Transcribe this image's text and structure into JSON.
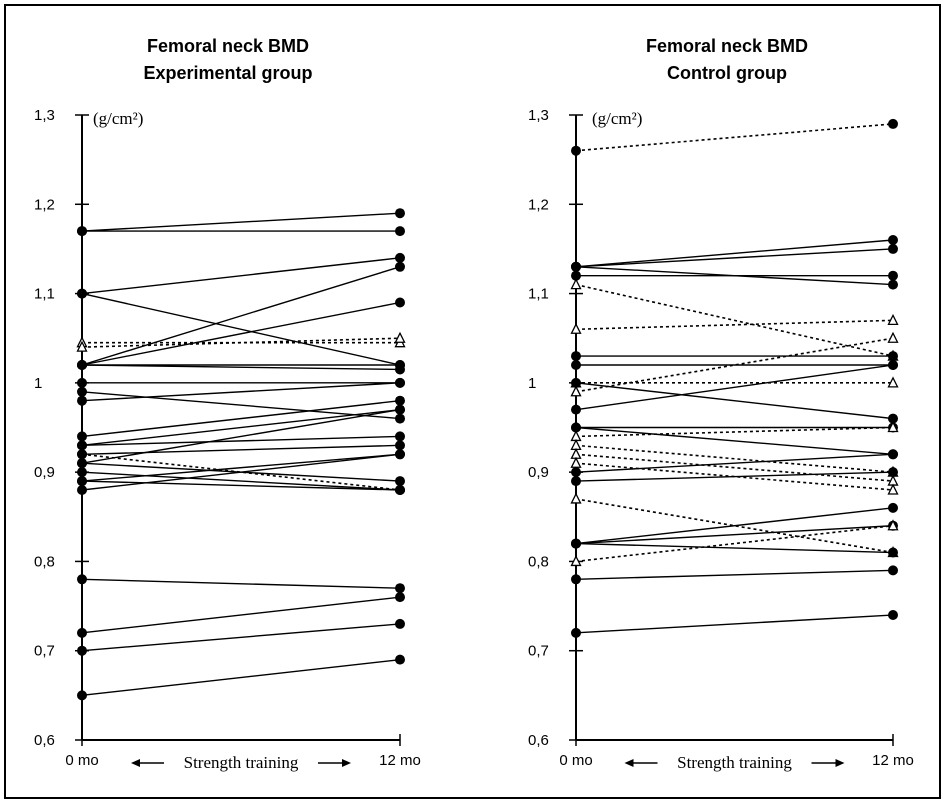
{
  "chart_data": [
    {
      "type": "line",
      "title": "Femoral neck BMD",
      "subtitle": "Experimental group",
      "unit_label": "(g/cm²)",
      "x_categories": [
        "0 mo",
        "12 mo"
      ],
      "xlabel": "Strength training",
      "ylim": [
        0.6,
        1.3
      ],
      "y_ticks": [
        "0,6",
        "0,7",
        "0,8",
        "0,9",
        "1",
        "1,1",
        "1,2",
        "1,3"
      ],
      "grid": false,
      "series": [
        {
          "values": [
            1.17,
            1.19
          ],
          "style": "solid",
          "marker": "circle"
        },
        {
          "values": [
            1.17,
            1.17
          ],
          "style": "solid",
          "marker": "circle"
        },
        {
          "values": [
            1.1,
            1.14
          ],
          "style": "solid",
          "marker": "circle"
        },
        {
          "values": [
            1.1,
            1.02
          ],
          "style": "solid",
          "marker": "circle"
        },
        {
          "values": [
            1.02,
            1.13
          ],
          "style": "solid",
          "marker": "circle"
        },
        {
          "values": [
            1.02,
            1.09
          ],
          "style": "solid",
          "marker": "circle"
        },
        {
          "values": [
            1.045,
            1.045
          ],
          "style": "dotted",
          "marker": "triangle"
        },
        {
          "values": [
            1.04,
            1.05
          ],
          "style": "dotted",
          "marker": "triangle"
        },
        {
          "values": [
            1.02,
            1.02
          ],
          "style": "solid",
          "marker": "circle"
        },
        {
          "values": [
            1.02,
            1.015
          ],
          "style": "solid",
          "marker": "circle"
        },
        {
          "values": [
            1.0,
            1.0
          ],
          "style": "solid",
          "marker": "circle"
        },
        {
          "values": [
            0.98,
            1.0
          ],
          "style": "solid",
          "marker": "circle"
        },
        {
          "values": [
            0.99,
            0.96
          ],
          "style": "solid",
          "marker": "circle"
        },
        {
          "values": [
            0.94,
            0.98
          ],
          "style": "solid",
          "marker": "circle"
        },
        {
          "values": [
            0.93,
            0.97
          ],
          "style": "solid",
          "marker": "circle"
        },
        {
          "values": [
            0.93,
            0.94
          ],
          "style": "solid",
          "marker": "circle"
        },
        {
          "values": [
            0.92,
            0.93
          ],
          "style": "solid",
          "marker": "circle"
        },
        {
          "values": [
            0.91,
            0.97
          ],
          "style": "solid",
          "marker": "circle"
        },
        {
          "values": [
            0.92,
            0.88
          ],
          "style": "dotted",
          "marker": "circle"
        },
        {
          "values": [
            0.91,
            0.89
          ],
          "style": "solid",
          "marker": "circle"
        },
        {
          "values": [
            0.9,
            0.88
          ],
          "style": "solid",
          "marker": "circle"
        },
        {
          "values": [
            0.89,
            0.92
          ],
          "style": "solid",
          "marker": "circle"
        },
        {
          "values": [
            0.88,
            0.92
          ],
          "style": "solid",
          "marker": "circle"
        },
        {
          "values": [
            0.89,
            0.88
          ],
          "style": "solid",
          "marker": "circle"
        },
        {
          "values": [
            0.78,
            0.77
          ],
          "style": "solid",
          "marker": "circle"
        },
        {
          "values": [
            0.72,
            0.76
          ],
          "style": "solid",
          "marker": "circle"
        },
        {
          "values": [
            0.7,
            0.73
          ],
          "style": "solid",
          "marker": "circle"
        },
        {
          "values": [
            0.65,
            0.69
          ],
          "style": "solid",
          "marker": "circle"
        }
      ]
    },
    {
      "type": "line",
      "title": "Femoral neck BMD",
      "subtitle": "Control group",
      "unit_label": "(g/cm²)",
      "x_categories": [
        "0 mo",
        "12 mo"
      ],
      "xlabel": "Strength training",
      "ylim": [
        0.6,
        1.3
      ],
      "y_ticks": [
        "0,6",
        "0,7",
        "0,8",
        "0,9",
        "1",
        "1,1",
        "1,2",
        "1,3"
      ],
      "grid": false,
      "series": [
        {
          "values": [
            1.26,
            1.29
          ],
          "style": "dotted",
          "marker": "circle"
        },
        {
          "values": [
            1.13,
            1.16
          ],
          "style": "solid",
          "marker": "circle"
        },
        {
          "values": [
            1.13,
            1.15
          ],
          "style": "solid",
          "marker": "circle"
        },
        {
          "values": [
            1.12,
            1.12
          ],
          "style": "solid",
          "marker": "circle"
        },
        {
          "values": [
            1.13,
            1.11
          ],
          "style": "solid",
          "marker": "circle"
        },
        {
          "values": [
            1.11,
            1.03
          ],
          "style": "dotted",
          "marker": "triangle"
        },
        {
          "values": [
            1.06,
            1.07
          ],
          "style": "dotted",
          "marker": "triangle"
        },
        {
          "values": [
            1.03,
            1.03
          ],
          "style": "solid",
          "marker": "circle"
        },
        {
          "values": [
            1.02,
            1.02
          ],
          "style": "solid",
          "marker": "circle"
        },
        {
          "values": [
            0.99,
            1.05
          ],
          "style": "dotted",
          "marker": "triangle"
        },
        {
          "values": [
            1.0,
            1.0
          ],
          "style": "dotted",
          "marker": "triangle"
        },
        {
          "values": [
            0.97,
            1.02
          ],
          "style": "solid",
          "marker": "circle"
        },
        {
          "values": [
            1.0,
            0.96
          ],
          "style": "solid",
          "marker": "circle"
        },
        {
          "values": [
            0.95,
            0.95
          ],
          "style": "solid",
          "marker": "circle"
        },
        {
          "values": [
            0.94,
            0.95
          ],
          "style": "dotted",
          "marker": "triangle"
        },
        {
          "values": [
            0.95,
            0.92
          ],
          "style": "solid",
          "marker": "circle"
        },
        {
          "values": [
            0.93,
            0.9
          ],
          "style": "dotted",
          "marker": "triangle"
        },
        {
          "values": [
            0.92,
            0.89
          ],
          "style": "dotted",
          "marker": "triangle"
        },
        {
          "values": [
            0.91,
            0.88
          ],
          "style": "dotted",
          "marker": "triangle"
        },
        {
          "values": [
            0.9,
            0.92
          ],
          "style": "solid",
          "marker": "circle"
        },
        {
          "values": [
            0.89,
            0.9
          ],
          "style": "solid",
          "marker": "circle"
        },
        {
          "values": [
            0.87,
            0.81
          ],
          "style": "dotted",
          "marker": "triangle"
        },
        {
          "values": [
            0.82,
            0.86
          ],
          "style": "solid",
          "marker": "circle"
        },
        {
          "values": [
            0.82,
            0.84
          ],
          "style": "solid",
          "marker": "circle"
        },
        {
          "values": [
            0.82,
            0.81
          ],
          "style": "solid",
          "marker": "circle"
        },
        {
          "values": [
            0.8,
            0.84
          ],
          "style": "dotted",
          "marker": "triangle"
        },
        {
          "values": [
            0.78,
            0.79
          ],
          "style": "solid",
          "marker": "circle"
        },
        {
          "values": [
            0.72,
            0.74
          ],
          "style": "solid",
          "marker": "circle"
        }
      ]
    }
  ]
}
